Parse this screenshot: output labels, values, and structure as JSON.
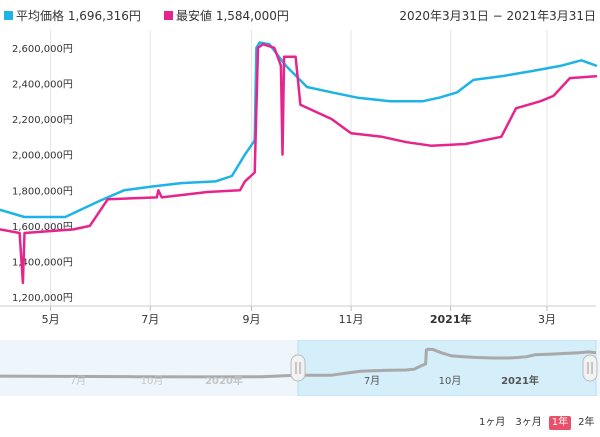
{
  "legend": {
    "avg": {
      "label": "平均価格 1,696,316円",
      "color": "#1eb3e6"
    },
    "min": {
      "label": "最安値 1,584,000円",
      "color": "#e6258c"
    }
  },
  "date_range": "2020年3月31日 − 2021年3月31日",
  "zoom_buttons": [
    {
      "label": "1ヶ月",
      "active": false
    },
    {
      "label": "3ヶ月",
      "active": false
    },
    {
      "label": "1年",
      "active": true
    },
    {
      "label": "2年",
      "active": false
    }
  ],
  "navigator": {
    "x_labels": [
      "7月",
      "10月",
      "2020年",
      "7月",
      "10月",
      "2021年"
    ]
  },
  "chart_data": {
    "type": "line",
    "title": "",
    "xlabel": "",
    "ylabel": "",
    "x_tick_labels": [
      "5月",
      "7月",
      "9月",
      "11月",
      "2021年",
      "3月"
    ],
    "y_tick_labels": [
      "1,200,000円",
      "1,400,000円",
      "1,600,000円",
      "1,800,000円",
      "2,000,000円",
      "2,200,000円",
      "2,400,000円",
      "2,600,000円"
    ],
    "ylim": [
      1150000,
      2700000
    ],
    "grid": "vertical",
    "legend_position": "top-left",
    "series": [
      {
        "name": "平均価格",
        "color": "#1eb3e6",
        "points": [
          [
            "2020-03-31",
            1690000
          ],
          [
            "2020-04-15",
            1650000
          ],
          [
            "2020-05-10",
            1650000
          ],
          [
            "2020-05-31",
            1740000
          ],
          [
            "2020-06-15",
            1800000
          ],
          [
            "2020-07-01",
            1820000
          ],
          [
            "2020-07-20",
            1840000
          ],
          [
            "2020-08-10",
            1850000
          ],
          [
            "2020-08-20",
            1880000
          ],
          [
            "2020-08-28",
            2000000
          ],
          [
            "2020-09-03",
            2080000
          ],
          [
            "2020-09-04",
            2600000
          ],
          [
            "2020-09-06",
            2630000
          ],
          [
            "2020-09-12",
            2620000
          ],
          [
            "2020-09-22",
            2500000
          ],
          [
            "2020-10-05",
            2380000
          ],
          [
            "2020-10-20",
            2350000
          ],
          [
            "2020-11-05",
            2320000
          ],
          [
            "2020-11-25",
            2300000
          ],
          [
            "2020-12-15",
            2300000
          ],
          [
            "2020-12-25",
            2320000
          ],
          [
            "2021-01-05",
            2350000
          ],
          [
            "2021-01-15",
            2420000
          ],
          [
            "2021-02-01",
            2440000
          ],
          [
            "2021-02-20",
            2470000
          ],
          [
            "2021-03-10",
            2500000
          ],
          [
            "2021-03-22",
            2530000
          ],
          [
            "2021-03-31",
            2500000
          ]
        ]
      },
      {
        "name": "最安値",
        "color": "#e6258c",
        "points": [
          [
            "2020-03-31",
            1580000
          ],
          [
            "2020-04-12",
            1560000
          ],
          [
            "2020-04-14",
            1280000
          ],
          [
            "2020-04-15",
            1560000
          ],
          [
            "2020-05-15",
            1580000
          ],
          [
            "2020-05-25",
            1600000
          ],
          [
            "2020-06-05",
            1750000
          ],
          [
            "2020-07-05",
            1760000
          ],
          [
            "2020-07-06",
            1800000
          ],
          [
            "2020-07-08",
            1760000
          ],
          [
            "2020-08-05",
            1790000
          ],
          [
            "2020-08-25",
            1800000
          ],
          [
            "2020-08-28",
            1850000
          ],
          [
            "2020-09-03",
            1900000
          ],
          [
            "2020-09-05",
            2600000
          ],
          [
            "2020-09-08",
            2620000
          ],
          [
            "2020-09-15",
            2600000
          ],
          [
            "2020-09-19",
            2500000
          ],
          [
            "2020-09-20",
            2000000
          ],
          [
            "2020-09-21",
            2550000
          ],
          [
            "2020-09-28",
            2550000
          ],
          [
            "2020-10-01",
            2280000
          ],
          [
            "2020-10-20",
            2200000
          ],
          [
            "2020-11-01",
            2120000
          ],
          [
            "2020-11-20",
            2100000
          ],
          [
            "2020-12-05",
            2070000
          ],
          [
            "2020-12-20",
            2050000
          ],
          [
            "2021-01-10",
            2060000
          ],
          [
            "2021-02-01",
            2100000
          ],
          [
            "2021-02-10",
            2260000
          ],
          [
            "2021-02-25",
            2300000
          ],
          [
            "2021-03-05",
            2330000
          ],
          [
            "2021-03-15",
            2430000
          ],
          [
            "2021-03-31",
            2440000
          ]
        ]
      }
    ]
  }
}
